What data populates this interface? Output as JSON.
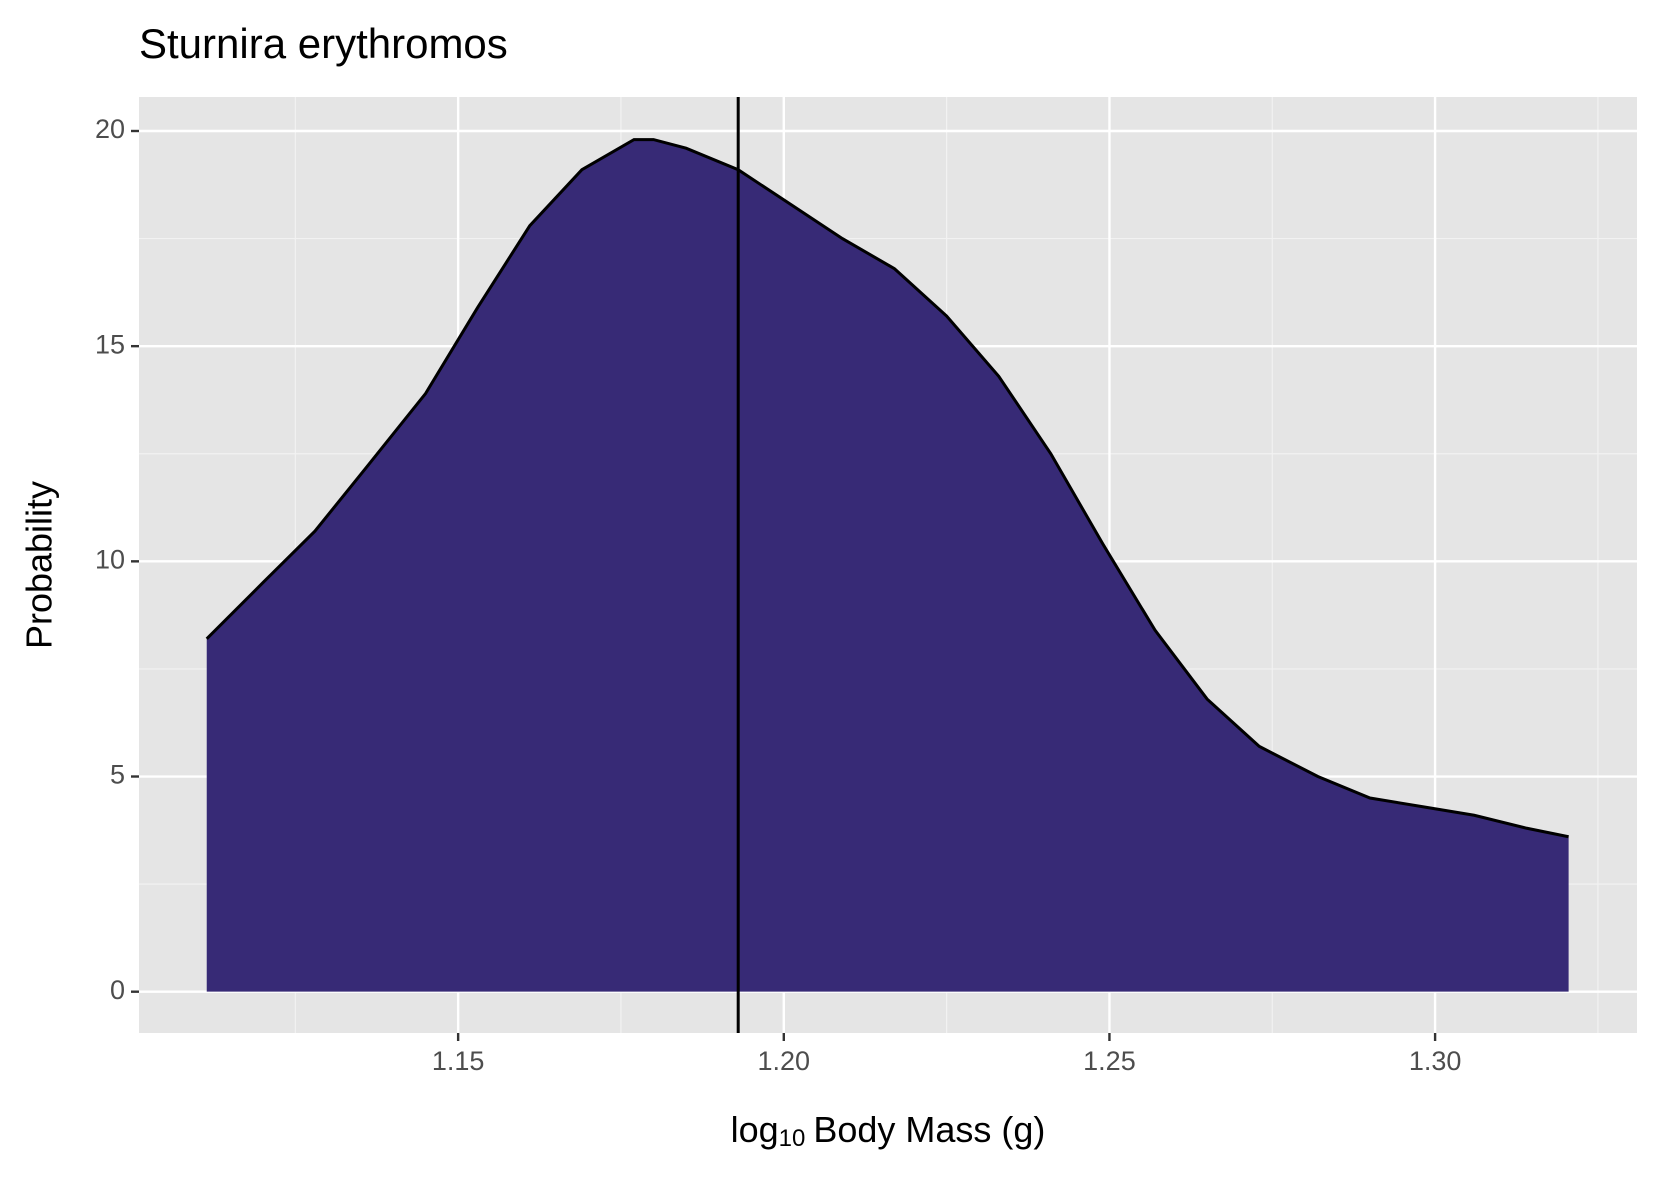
{
  "chart_data": {
    "type": "area",
    "title": "Sturnira erythromos",
    "xlabel": {
      "base": "log",
      "subscript": "10",
      "rest": "Body Mass (g)"
    },
    "ylabel": "Probability",
    "x": [
      1.1114,
      1.12,
      1.128,
      1.136,
      1.145,
      1.153,
      1.161,
      1.169,
      1.177,
      1.18,
      1.185,
      1.193,
      1.201,
      1.209,
      1.217,
      1.225,
      1.233,
      1.241,
      1.249,
      1.257,
      1.265,
      1.273,
      1.282,
      1.29,
      1.298,
      1.306,
      1.314,
      1.3205
    ],
    "values": [
      8.2,
      9.5,
      10.7,
      12.2,
      13.9,
      15.9,
      17.8,
      19.1,
      19.8,
      19.8,
      19.6,
      19.1,
      18.3,
      17.5,
      16.8,
      15.7,
      14.3,
      12.5,
      10.4,
      8.4,
      6.8,
      5.7,
      5.0,
      4.5,
      4.3,
      4.1,
      3.8,
      3.6
    ],
    "color": "#372a76",
    "vline": 1.193,
    "xlim": [
      1.101,
      1.331
    ],
    "ylim": [
      -0.96,
      20.79
    ],
    "xticks": [
      {
        "value": 1.15,
        "label": "1.15"
      },
      {
        "value": 1.2,
        "label": "1.20"
      },
      {
        "value": 1.25,
        "label": "1.25"
      },
      {
        "value": 1.3,
        "label": "1.30"
      }
    ],
    "yticks": [
      0,
      5,
      10,
      15,
      20
    ],
    "grid": true
  }
}
